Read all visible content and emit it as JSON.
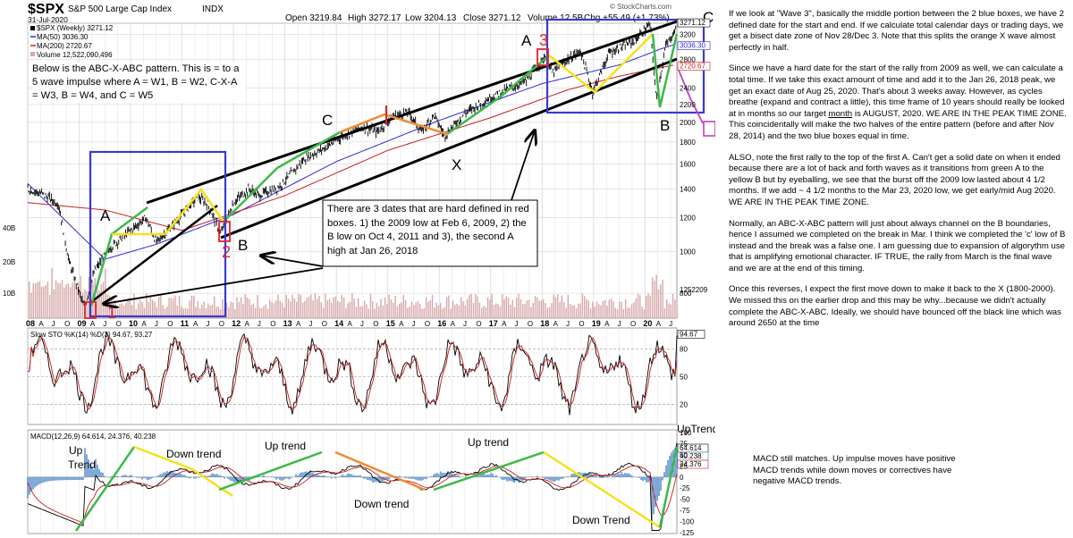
{
  "header": {
    "symbol": "$SPX",
    "name": "S&P 500 Large Cap Index",
    "exchange": "INDX",
    "date": "31-Jul-2020",
    "open": "Open 3219.84",
    "high": "High 3272.17",
    "low": "Low 3204.13",
    "close": "Close 3271.12",
    "volume": "Volume 12.5B",
    "chg": "Chg +55.49 (+1.73%)",
    "watermark": "© StockCharts.com"
  },
  "legend": {
    "price": "$SPX (Weekly) 3271.12",
    "ma50": "MA(50) 3036.30",
    "ma200": "MA(200) 2720.67",
    "volume": "Volume 12,522,090,496"
  },
  "colors": {
    "price": "#000000",
    "ma50": "#2b2bd6",
    "ma200": "#c81e1e",
    "green": "#3cb94a",
    "yellow": "#f5e21b",
    "orange": "#f08c32",
    "blue_box": "#3a3ad0",
    "red": "#e0242c",
    "purple": "#c040c0",
    "volume": "#d7a8a8",
    "grid": "#d8d8d8"
  },
  "chart_data": [
    {
      "type": "line",
      "title": "$SPX S&P 500 Large Cap Index INDX (Weekly)",
      "scale": "log",
      "ylim": [
        700,
        3400
      ],
      "x_tick_labels": [
        "08",
        "A",
        "J",
        "O",
        "09",
        "A",
        "J",
        "O",
        "10",
        "A",
        "J",
        "O",
        "11",
        "A",
        "J",
        "O",
        "12",
        "A",
        "J",
        "O",
        "13",
        "A",
        "J",
        "O",
        "14",
        "A",
        "J",
        "O",
        "15",
        "A",
        "J",
        "O",
        "16",
        "A",
        "J",
        "O",
        "17",
        "A",
        "J",
        "O",
        "18",
        "A",
        "J",
        "O",
        "19",
        "A",
        "J",
        "O",
        "20",
        "A",
        "J"
      ],
      "y_tick_labels": [
        "3400",
        "3200",
        "2800",
        "2400",
        "2200",
        "2000",
        "1800",
        "1600",
        "1400",
        "1200",
        "1000",
        "800"
      ],
      "y_ticks": [
        3400,
        3200,
        2800,
        2400,
        2200,
        2000,
        1800,
        1600,
        1400,
        1200,
        1000,
        800
      ],
      "value_labels": [
        "3271.12",
        "3036.30",
        "2720.67"
      ],
      "series": [
        {
          "name": "$SPX (Weekly)",
          "x": [
            2008.0,
            2008.3,
            2008.6,
            2008.8,
            2009.1,
            2009.3,
            2009.6,
            2010.0,
            2010.3,
            2010.5,
            2010.9,
            2011.3,
            2011.5,
            2011.75,
            2012.0,
            2012.3,
            2012.5,
            2012.9,
            2013.4,
            2013.8,
            2014.1,
            2014.5,
            2014.8,
            2015.1,
            2015.4,
            2015.65,
            2015.9,
            2016.1,
            2016.5,
            2016.9,
            2017.3,
            2017.7,
            2018.07,
            2018.2,
            2018.5,
            2018.75,
            2018.98,
            2019.3,
            2019.5,
            2019.8,
            2020.1,
            2020.22,
            2020.4,
            2020.58
          ],
          "values": [
            1400,
            1360,
            1290,
            950,
            740,
            900,
            1020,
            1120,
            1200,
            1050,
            1180,
            1340,
            1290,
            1100,
            1300,
            1400,
            1350,
            1420,
            1650,
            1750,
            1850,
            1950,
            1900,
            2070,
            2110,
            1900,
            2080,
            1860,
            2100,
            2250,
            2380,
            2500,
            2860,
            2600,
            2800,
            2930,
            2350,
            2900,
            2980,
            3100,
            3380,
            2250,
            3000,
            3271
          ]
        },
        {
          "name": "MA(50)",
          "x": [
            2008.0,
            2009.5,
            2010.5,
            2012.0,
            2014.0,
            2016.0,
            2018.0,
            2019.5,
            2020.3,
            2020.58
          ],
          "values": [
            1440,
            960,
            1040,
            1220,
            1620,
            2020,
            2460,
            2720,
            2960,
            3036
          ]
        },
        {
          "name": "MA(200)",
          "x": [
            2008.0,
            2009.5,
            2011.0,
            2013.0,
            2015.0,
            2017.0,
            2018.5,
            2019.5,
            2020.58
          ],
          "values": [
            1300,
            1250,
            1120,
            1350,
            1720,
            2050,
            2380,
            2560,
            2721
          ]
        }
      ]
    },
    {
      "type": "line",
      "title": "Slow STO %K(14) %D(3) 94.67, 93.27",
      "ylim": [
        0,
        100
      ],
      "y_tick_labels": [
        "80",
        "50",
        "20"
      ],
      "value_labels": [
        "94.67"
      ],
      "series": [
        {
          "name": "%K(14)",
          "last": 94.67
        },
        {
          "name": "%D(3)",
          "last": 93.27
        }
      ]
    },
    {
      "type": "line",
      "title": "MACD(12,26,9) 64.614, 24.376, 40.238",
      "ylim": [
        -125,
        100
      ],
      "y_tick_labels": [
        "100",
        "75",
        "50",
        "25",
        "0",
        "-25",
        "-50",
        "-75",
        "-100",
        "-125"
      ],
      "value_labels": [
        "64.614",
        "40.238",
        "24.376"
      ],
      "series": [
        {
          "name": "MACD",
          "last": 64.614
        },
        {
          "name": "Signal",
          "last": 24.376
        },
        {
          "name": "Histogram",
          "last": 40.238
        }
      ]
    }
  ],
  "volume": {
    "y_tick_labels": [
      "40B",
      "20B",
      "10B"
    ],
    "last_label": "1252209"
  },
  "annotations": {
    "pattern_box": "Below is the ABC-X-ABC pattern. This is = to a 5 wave impulse where A = W1, B = W2, C-X-A = W3, B = W4, and C = W5",
    "dates_box": "There are 3 dates that are hard defined in red boxes. 1) the 2009 low at Feb 6, 2009, 2) the B low on Oct 4, 2011 and 3), the second A high at Jan 26, 2018",
    "labels": [
      "A",
      "B",
      "C",
      "X",
      "A",
      "B",
      "C"
    ],
    "red_numbers": [
      "1",
      "2",
      "3"
    ],
    "macd_labels": [
      "Up",
      "Trend",
      "Down trend",
      "Up trend",
      "Down trend",
      "Up trend",
      "Down Trend",
      "UpTrend"
    ]
  },
  "commentary": [
    "If we look at \"Wave 3\", basically the middle portion between the 2 blue boxes, we have 2 defined date for the start and end.  If we calculate total calendar days or trading days, we get a bisect date zone of Nov 28/Dec 3. Note that this splits the orange X wave almost perfectly in half.",
    "Since we have a hard date for the start of the rally from 2009 as well, we can calculate a total time. If we take this exact amount of time and add it to the Jan 26, 2018 peak, we get an exact date of Aug 25, 2020. That's about 3 weeks away. However, as cycles breathe (expand and contract a little), this time frame of 10 years should really be looked at in months so our target",
    "month",
    "is AUGUST, 2020. WE ARE IN THE PEAK TIME ZONE. This coincidentally will make the two halves of the entire pattern (before and after Nov 28, 2014) and the two blue boxes equal in time.",
    "ALSO, note the first rally to the top of the first A. Can't get a solid date on when it ended because there are a lot of back and forth waves as it transitions from green A to the yellow B but by eyeballing, we see that the burst off the 2009 low lasted about 4 1/2 months. If we add ~ 4 1/2 months to the Mar 23, 2020 low, we get early/mid Aug 2020. WE ARE IN THE PEAK TIME ZONE.",
    "Normally, an ABC-X-ABC pattern will just about always channel on the B boundaries, hence I assumed we completed on the break in Mar.  I think we completed the 'c' low of B instead and the break was a false one. I am guessing due to expansion of algorythm use that is amplifying emotional character. IF TRUE, the rally from March is the final wave and we are at the end of this timing.",
    "Once this reverses, I expect the first move down to make it back to the X (1800-2000). We missed this on the earlier drop and this may be why...because we didn't actually complete the ABC-X-ABC. Ideally, we should have bounced off the black line which was around 2650 at the time"
  ],
  "macd_note": "MACD still matches. Up impulse moves have positive MACD trends while down moves or correctives have negative MACD trends."
}
